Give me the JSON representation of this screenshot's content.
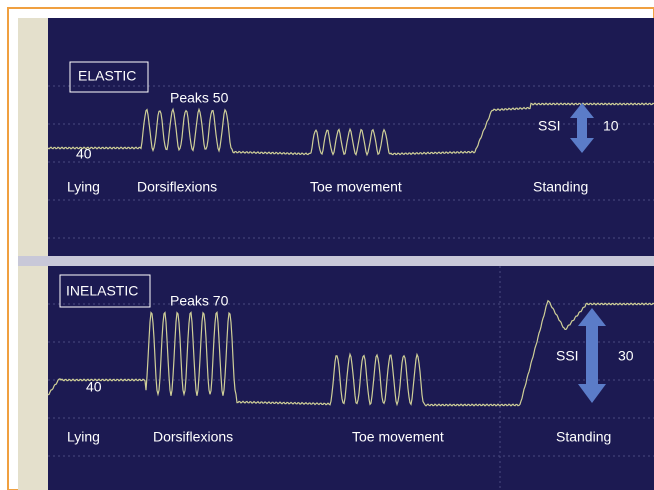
{
  "panels": [
    {
      "label": "ELASTIC",
      "peaks": "Peaks 50",
      "baseline": "40",
      "ssi": "SSI",
      "ssi_value": "10",
      "phases": [
        "Lying",
        "Dorsiflexions",
        "Toe movement",
        "Standing"
      ]
    },
    {
      "label": "INELASTIC",
      "peaks": "Peaks 70",
      "baseline": "40",
      "ssi": "SSI",
      "ssi_value": "30",
      "phases": [
        "Lying",
        "Dorsiflexions",
        "Toe movement",
        "Standing"
      ]
    }
  ]
}
